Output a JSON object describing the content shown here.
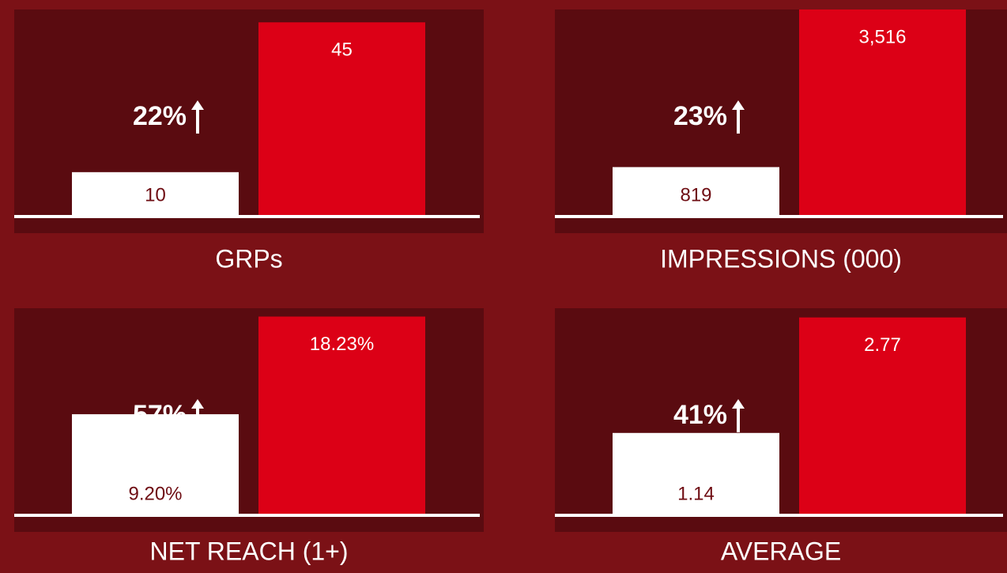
{
  "chart_data": [
    {
      "type": "bar",
      "title": "GRPs",
      "annotation": "22%",
      "categories": [
        null,
        null
      ],
      "values": [
        10,
        45
      ],
      "colors": [
        "#ffffff",
        "#dc0016"
      ],
      "label_colors": [
        "#6e0c12",
        "#ffffff"
      ],
      "ylim": [
        0,
        48
      ]
    },
    {
      "type": "bar",
      "title": "IMPRESSIONS (000)",
      "annotation": "23%",
      "categories": [
        null,
        null
      ],
      "values": [
        819,
        3516
      ],
      "value_labels": [
        "819",
        "3,516"
      ],
      "colors": [
        "#ffffff",
        "#dc0016"
      ],
      "label_colors": [
        "#6e0c12",
        "#ffffff"
      ],
      "ylim": [
        0,
        3516
      ]
    },
    {
      "type": "bar",
      "title": "NET REACH (1+)",
      "annotation": "57%",
      "categories": [
        null,
        null
      ],
      "values": [
        9.2,
        18.23
      ],
      "value_labels": [
        "9.20%",
        "18.23%"
      ],
      "colors": [
        "#ffffff",
        "#dc0016"
      ],
      "label_colors": [
        "#6e0c12",
        "#ffffff"
      ],
      "ylim": [
        0,
        19
      ]
    },
    {
      "type": "bar",
      "title": "AVERAGE",
      "annotation": "41%",
      "categories": [
        null,
        null
      ],
      "values": [
        1.14,
        2.77
      ],
      "colors": [
        "#ffffff",
        "#dc0016"
      ],
      "label_colors": [
        "#6e0c12",
        "#ffffff"
      ],
      "ylim": [
        0,
        2.9
      ]
    }
  ]
}
